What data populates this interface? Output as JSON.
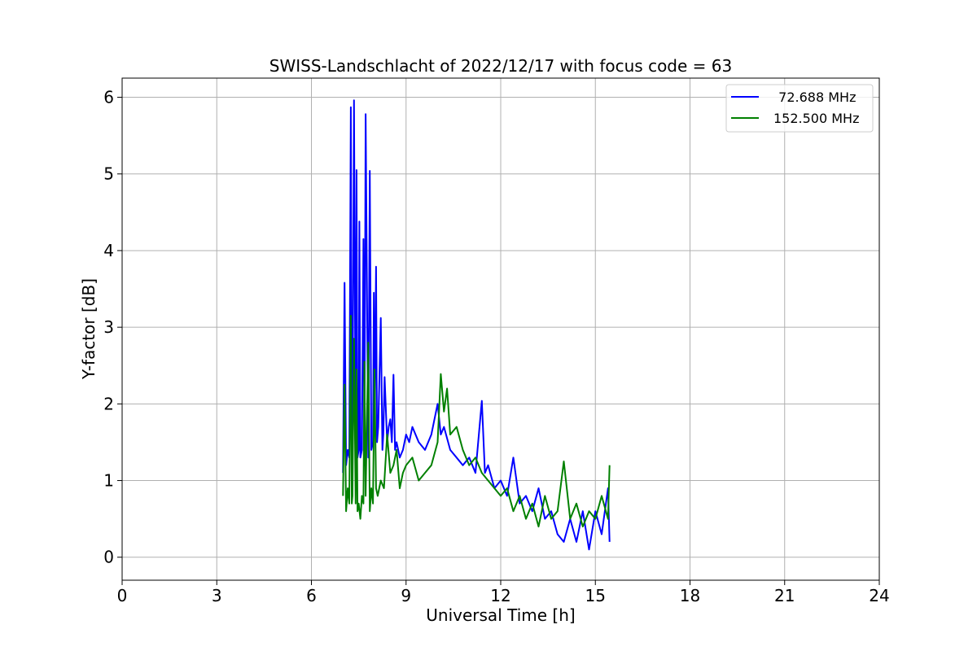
{
  "chart_data": {
    "type": "line",
    "title": "SWISS-Landschlacht of 2022/12/17 with focus code = 63",
    "xlabel": "Universal Time [h]",
    "ylabel": "Y-factor [dB]",
    "xlim": [
      0,
      24
    ],
    "ylim": [
      -0.3,
      6.25
    ],
    "xticks": [
      0,
      3,
      6,
      9,
      12,
      15,
      18,
      21,
      24
    ],
    "yticks": [
      0,
      1,
      2,
      3,
      4,
      5,
      6
    ],
    "grid": true,
    "legend_position": "top-right",
    "series": [
      {
        "name": "  72.688 MHz",
        "color": "#0000ff",
        "x": [
          7.0,
          7.05,
          7.1,
          7.15,
          7.2,
          7.25,
          7.28,
          7.3,
          7.35,
          7.4,
          7.43,
          7.46,
          7.5,
          7.52,
          7.55,
          7.6,
          7.65,
          7.68,
          7.72,
          7.8,
          7.85,
          7.9,
          7.95,
          7.98,
          8.0,
          8.05,
          8.08,
          8.12,
          8.2,
          8.25,
          8.28,
          8.32,
          8.4,
          8.45,
          8.5,
          8.55,
          8.6,
          8.65,
          8.7,
          8.8,
          8.9,
          9.0,
          9.1,
          9.2,
          9.4,
          9.6,
          9.8,
          10.0,
          10.1,
          10.2,
          10.4,
          10.6,
          10.8,
          11.0,
          11.2,
          11.4,
          11.5,
          11.6,
          11.8,
          12.0,
          12.2,
          12.4,
          12.6,
          12.8,
          13.0,
          13.2,
          13.4,
          13.6,
          13.8,
          14.0,
          14.2,
          14.4,
          14.6,
          14.8,
          15.0,
          15.2,
          15.4,
          15.45
        ],
        "values": [
          1.1,
          3.58,
          1.2,
          1.4,
          1.3,
          5.87,
          1.3,
          1.4,
          5.96,
          1.4,
          5.05,
          1.3,
          1.4,
          4.38,
          1.3,
          1.4,
          4.15,
          1.2,
          5.78,
          1.3,
          5.04,
          1.4,
          1.5,
          3.45,
          1.6,
          3.79,
          1.5,
          1.7,
          3.12,
          1.4,
          1.6,
          2.35,
          1.5,
          1.7,
          1.8,
          1.5,
          2.38,
          1.4,
          1.5,
          1.3,
          1.4,
          1.6,
          1.5,
          1.7,
          1.5,
          1.4,
          1.6,
          2.0,
          1.6,
          1.7,
          1.4,
          1.3,
          1.2,
          1.3,
          1.1,
          2.04,
          1.1,
          1.2,
          0.9,
          1.0,
          0.8,
          1.3,
          0.7,
          0.8,
          0.6,
          0.9,
          0.5,
          0.6,
          0.3,
          0.2,
          0.5,
          0.2,
          0.6,
          0.1,
          0.6,
          0.3,
          0.9,
          0.2
        ]
      },
      {
        "name": "152.500 MHz",
        "color": "#008000",
        "x": [
          7.0,
          7.05,
          7.1,
          7.15,
          7.2,
          7.25,
          7.28,
          7.3,
          7.35,
          7.4,
          7.43,
          7.46,
          7.5,
          7.55,
          7.6,
          7.65,
          7.68,
          7.72,
          7.8,
          7.85,
          7.9,
          7.95,
          8.0,
          8.05,
          8.1,
          8.2,
          8.3,
          8.4,
          8.5,
          8.6,
          8.7,
          8.8,
          8.9,
          9.0,
          9.2,
          9.4,
          9.6,
          9.8,
          10.0,
          10.1,
          10.2,
          10.3,
          10.4,
          10.6,
          10.8,
          11.0,
          11.2,
          11.4,
          11.6,
          11.8,
          12.0,
          12.2,
          12.4,
          12.6,
          12.8,
          13.0,
          13.2,
          13.4,
          13.6,
          13.8,
          14.0,
          14.2,
          14.4,
          14.6,
          14.8,
          15.0,
          15.2,
          15.4,
          15.45
        ],
        "values": [
          0.8,
          2.25,
          0.6,
          0.9,
          0.7,
          3.15,
          0.7,
          0.8,
          2.85,
          0.7,
          2.45,
          0.6,
          0.7,
          0.5,
          0.8,
          0.7,
          2.55,
          0.8,
          2.8,
          0.6,
          0.9,
          0.7,
          2.45,
          0.9,
          0.8,
          1.0,
          0.9,
          1.6,
          1.1,
          1.2,
          1.4,
          0.9,
          1.1,
          1.2,
          1.3,
          1.0,
          1.1,
          1.2,
          1.5,
          2.39,
          1.9,
          2.2,
          1.6,
          1.7,
          1.4,
          1.2,
          1.3,
          1.1,
          1.0,
          0.9,
          0.8,
          0.9,
          0.6,
          0.8,
          0.5,
          0.7,
          0.4,
          0.8,
          0.5,
          0.6,
          1.25,
          0.5,
          0.7,
          0.4,
          0.6,
          0.5,
          0.8,
          0.5,
          1.2
        ]
      }
    ]
  }
}
